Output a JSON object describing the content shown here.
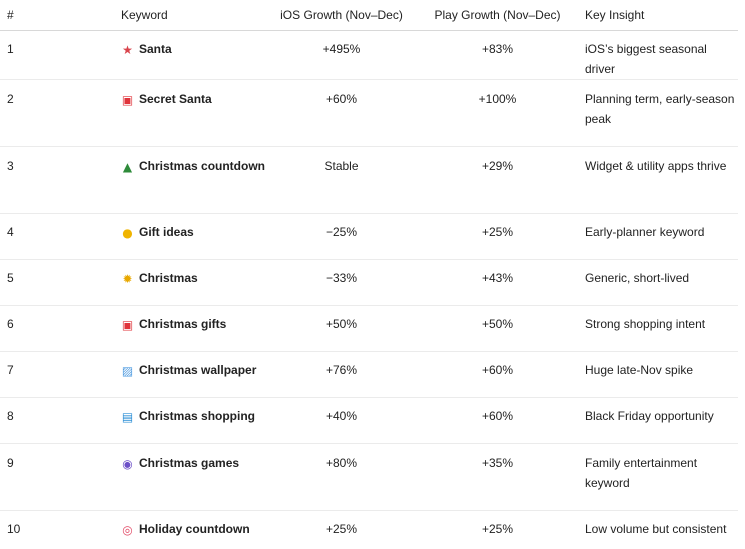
{
  "headers": {
    "num": "#",
    "keyword": "Keyword",
    "ios": "iOS Growth (Nov–Dec)",
    "play": "Play Growth (Nov–Dec)",
    "insight": "Key Insight"
  },
  "rows": [
    {
      "num": "1",
      "icon": "santa-icon",
      "glyph": "★",
      "keyword": "Santa",
      "ios": "+495%",
      "play": "+83%",
      "insight": "iOS’s biggest seasonal driver"
    },
    {
      "num": "2",
      "icon": "gift-icon",
      "glyph": "▣",
      "keyword": "Secret Santa",
      "ios": "+60%",
      "play": "+100%",
      "insight": "Planning term, early-season peak"
    },
    {
      "num": "3",
      "icon": "christmas-tree-icon",
      "glyph": "▲",
      "keyword": "Christmas countdown",
      "ios": "Stable",
      "play": "+29%",
      "insight": "Widget & utility apps thrive"
    },
    {
      "num": "4",
      "icon": "light-bulb-icon",
      "glyph": "●",
      "keyword": "Gift ideas",
      "ios": "−25%",
      "play": "+25%",
      "insight": "Early-planner keyword"
    },
    {
      "num": "5",
      "icon": "snowflake-icon",
      "glyph": "✹",
      "keyword": "Christmas",
      "ios": "−33%",
      "play": "+43%",
      "insight": "Generic, short-lived"
    },
    {
      "num": "6",
      "icon": "gift-icon",
      "glyph": "▣",
      "keyword": "Christmas gifts",
      "ios": "+50%",
      "play": "+50%",
      "insight": "Strong shopping intent"
    },
    {
      "num": "7",
      "icon": "picture-icon",
      "glyph": "▨",
      "keyword": "Christmas wallpaper",
      "ios": "+76%",
      "play": "+60%",
      "insight": "Huge late-Nov spike"
    },
    {
      "num": "8",
      "icon": "shopping-bags-icon",
      "glyph": "▤",
      "keyword": "Christmas shopping",
      "ios": "+40%",
      "play": "+60%",
      "insight": "Black Friday opportunity"
    },
    {
      "num": "9",
      "icon": "game-controller-icon",
      "glyph": "◉",
      "keyword": "Christmas games",
      "ios": "+80%",
      "play": "+35%",
      "insight": "Family entertainment keyword"
    },
    {
      "num": "10",
      "icon": "alarm-clock-icon",
      "glyph": "◎",
      "keyword": "Holiday countdown",
      "ios": "+25%",
      "play": "+25%",
      "insight": "Low volume but consistent"
    }
  ]
}
